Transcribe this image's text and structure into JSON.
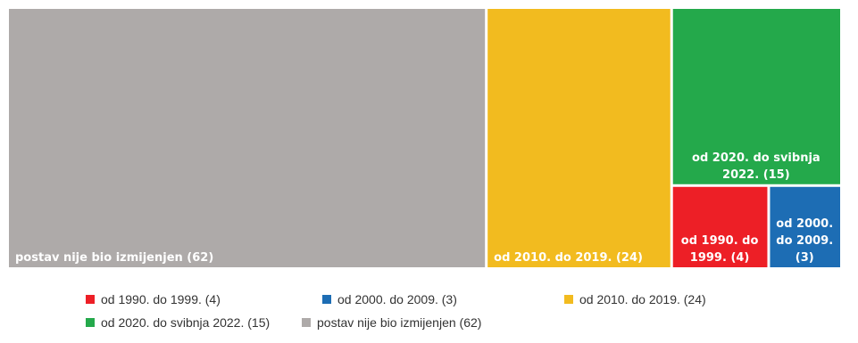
{
  "chart_data": {
    "type": "treemap",
    "title": "",
    "items": [
      {
        "label": "postav nije bio izmijenjen (62)",
        "value": 62,
        "color": "#aeaaa9",
        "tile_lines": [
          "postav nije bio izmijenjen (62)"
        ]
      },
      {
        "label": "od 2010. do 2019. (24)",
        "value": 24,
        "color": "#f2bb1f",
        "tile_lines": [
          "od 2010. do 2019. (24)"
        ]
      },
      {
        "label": "od 2020. do svibnja 2022. (15)",
        "value": 15,
        "color": "#24a94b",
        "tile_lines": [
          "od 2020. do svibnja",
          "2022. (15)"
        ]
      },
      {
        "label": "od 1990. do 1999. (4)",
        "value": 4,
        "color": "#ed1f26",
        "tile_lines": [
          "od 1990. do",
          "1999. (4)"
        ]
      },
      {
        "label": "od 2000. do 2009. (3)",
        "value": 3,
        "color": "#1d6db4",
        "tile_lines": [
          "od 2000.",
          "do 2009.",
          "(3)"
        ]
      }
    ],
    "legend": {
      "placement": "bottom",
      "entries": [
        {
          "label": "od 1990. do 1999. (4)",
          "color": "#ed1f26"
        },
        {
          "label": "od 2000. do 2009. (3)",
          "color": "#1d6db4"
        },
        {
          "label": "od 2010. do 2019. (24)",
          "color": "#f2bb1f"
        },
        {
          "label": "od 2020. do svibnja 2022. (15)",
          "color": "#24a94b"
        },
        {
          "label": "postav nije bio izmijenjen (62)",
          "color": "#aeaaa9"
        }
      ]
    }
  }
}
